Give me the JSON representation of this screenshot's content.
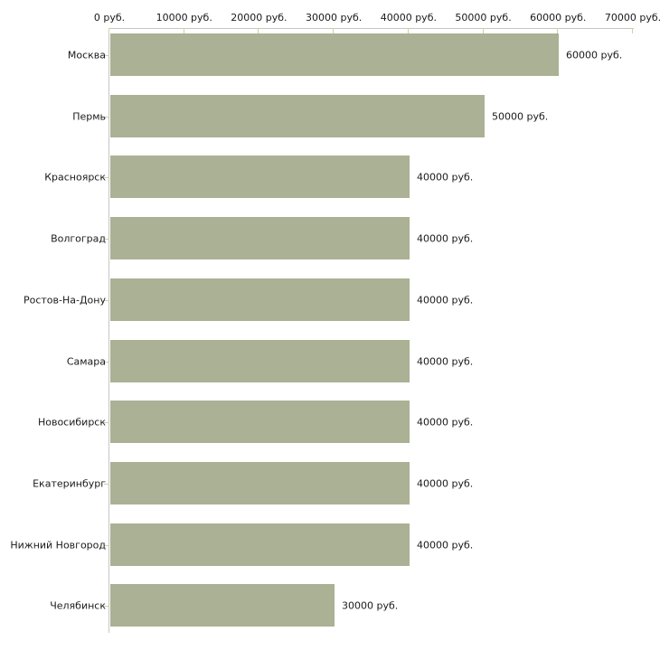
{
  "chart_data": {
    "type": "bar",
    "orientation": "horizontal",
    "title": "",
    "xlabel": "",
    "ylabel": "",
    "unit": "руб.",
    "xlim": [
      0,
      70000
    ],
    "grid": false,
    "legend": null,
    "categories": [
      "Москва",
      "Пермь",
      "Красноярск",
      "Волгоград",
      "Ростов-На-Дону",
      "Самара",
      "Новосибирск",
      "Екатеринбург",
      "Нижний Новгород",
      "Челябинск"
    ],
    "values": [
      60000,
      50000,
      40000,
      40000,
      40000,
      40000,
      40000,
      40000,
      40000,
      30000
    ],
    "bar_labels": [
      "60000 руб.",
      "50000 руб.",
      "40000 руб.",
      "40000 руб.",
      "40000 руб.",
      "40000 руб.",
      "40000 руб.",
      "40000 руб.",
      "40000 руб.",
      "30000 руб."
    ],
    "x_tick_values": [
      0,
      10000,
      20000,
      30000,
      40000,
      50000,
      60000,
      70000
    ],
    "x_tick_labels": [
      "0 руб.",
      "10000 руб.",
      "20000 руб.",
      "30000 руб.",
      "40000 руб.",
      "50000 руб.",
      "60000 руб.",
      "70000 руб."
    ],
    "colors": {
      "bar": "#abb194",
      "axis_line": "#c6c6c6",
      "tick": "#cfd1a5",
      "text": "#1a1a1a",
      "background": "#ffffff"
    }
  }
}
